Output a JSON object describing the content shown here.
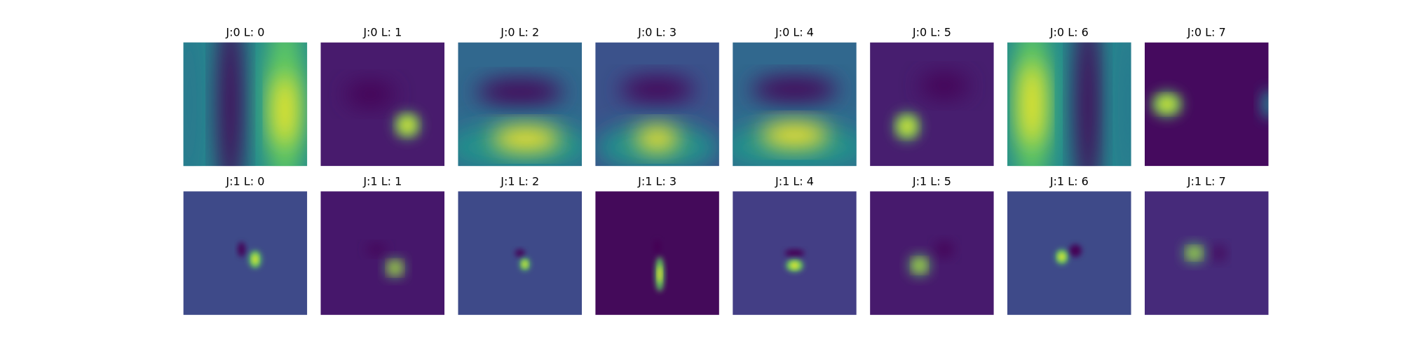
{
  "panels": [
    {
      "title": "J:0 L: 0"
    },
    {
      "title": "J:0 L: 1"
    },
    {
      "title": "J:0 L: 2"
    },
    {
      "title": "J:0 L: 3"
    },
    {
      "title": "J:0 L: 4"
    },
    {
      "title": "J:0 L: 5"
    },
    {
      "title": "J:0 L: 6"
    },
    {
      "title": "J:0 L: 7"
    },
    {
      "title": "J:1 L: 0"
    },
    {
      "title": "J:1 L: 1"
    },
    {
      "title": "J:1 L: 2"
    },
    {
      "title": "J:1 L: 3"
    },
    {
      "title": "J:1 L: 4"
    },
    {
      "title": "J:1 L: 5"
    },
    {
      "title": "J:1 L: 6"
    },
    {
      "title": "J:1 L: 7"
    }
  ]
}
